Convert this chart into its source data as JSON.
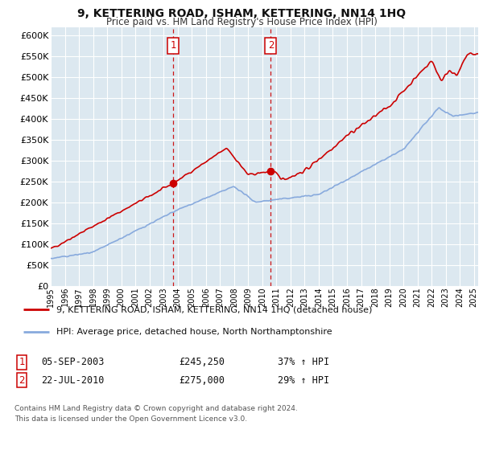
{
  "title": "9, KETTERING ROAD, ISHAM, KETTERING, NN14 1HQ",
  "subtitle": "Price paid vs. HM Land Registry's House Price Index (HPI)",
  "ylim": [
    0,
    620000
  ],
  "yticks": [
    0,
    50000,
    100000,
    150000,
    200000,
    250000,
    300000,
    350000,
    400000,
    450000,
    500000,
    550000,
    600000
  ],
  "sale1_date": 2003.67,
  "sale1_price": 245250,
  "sale1_label": "1",
  "sale2_date": 2010.6,
  "sale2_price": 275000,
  "sale2_label": "2",
  "red_line_color": "#cc0000",
  "blue_line_color": "#88aadd",
  "background_color": "#dce8f0",
  "grid_color": "#ffffff",
  "legend_line1": "9, KETTERING ROAD, ISHAM, KETTERING, NN14 1HQ (detached house)",
  "legend_line2": "HPI: Average price, detached house, North Northamptonshire",
  "table_row1": [
    "1",
    "05-SEP-2003",
    "£245,250",
    "37% ↑ HPI"
  ],
  "table_row2": [
    "2",
    "22-JUL-2010",
    "£275,000",
    "29% ↑ HPI"
  ],
  "footnote": "Contains HM Land Registry data © Crown copyright and database right 2024.\nThis data is licensed under the Open Government Licence v3.0.",
  "xmin": 1995,
  "xmax": 2025.3
}
